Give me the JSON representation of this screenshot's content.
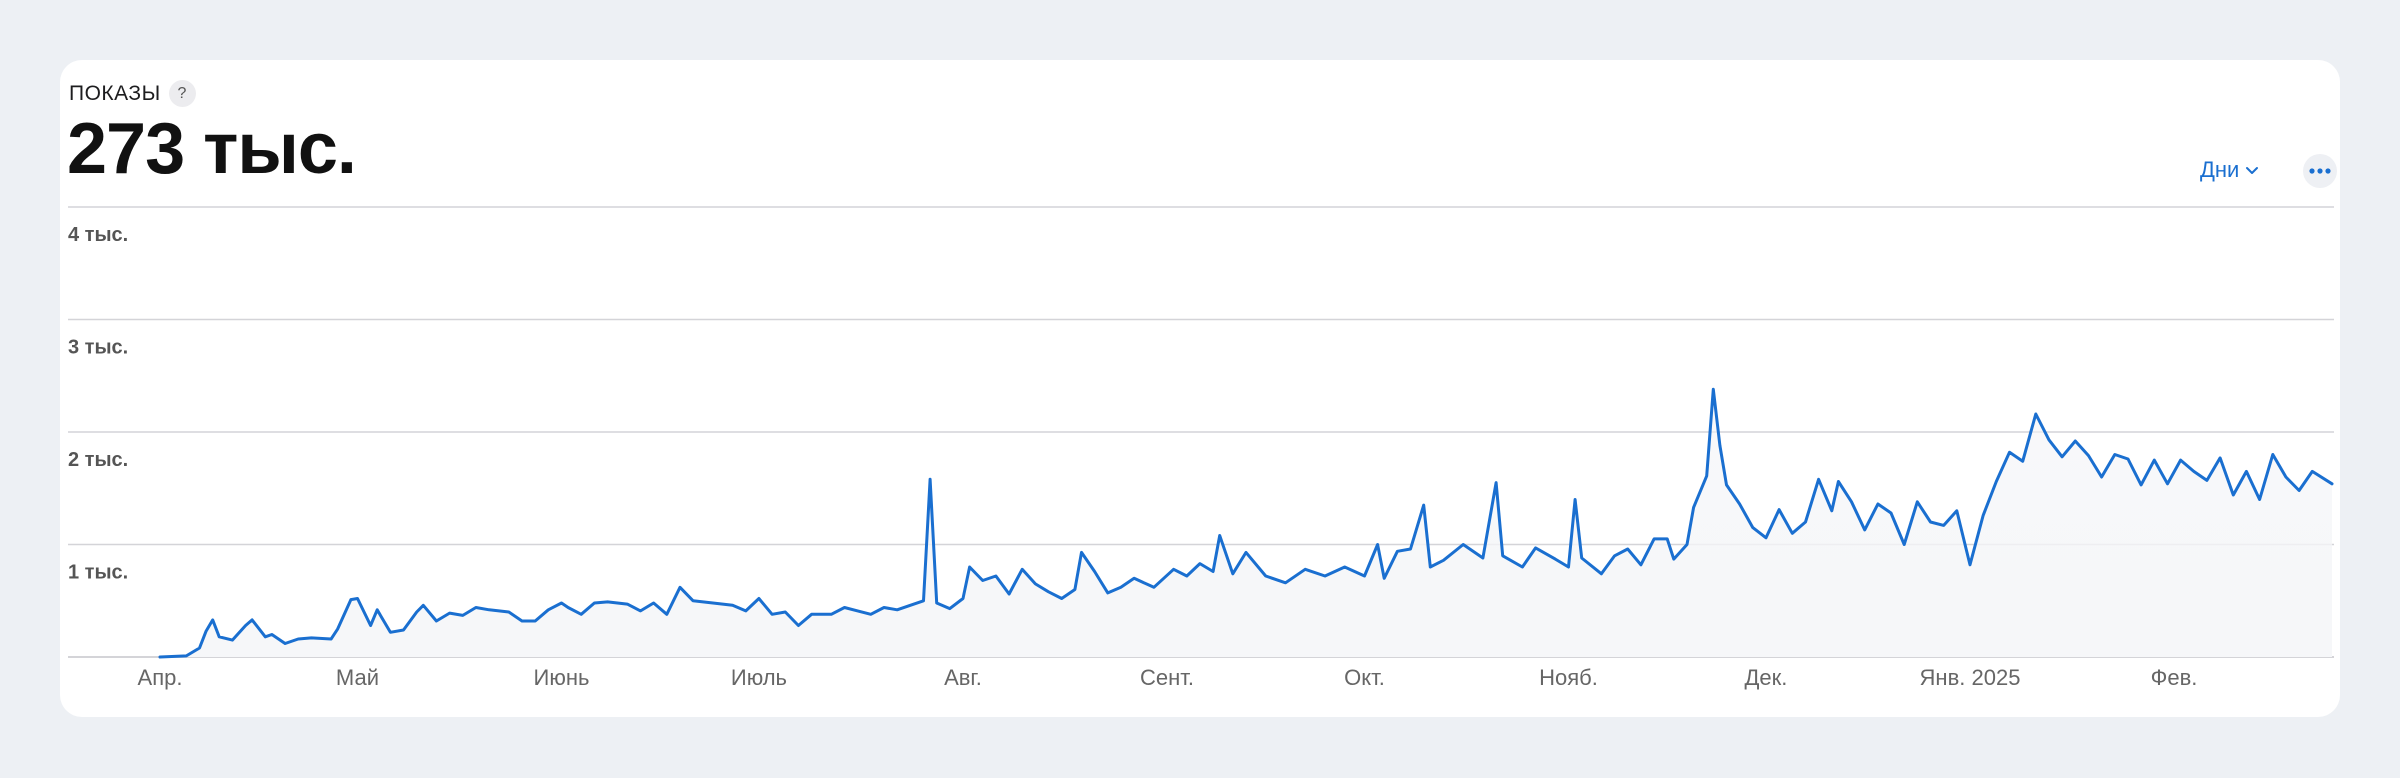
{
  "metric": {
    "label": "ПОКАЗЫ",
    "help": "?",
    "total": "273 тыс."
  },
  "controls": {
    "period_label": "Дни",
    "more_icon": "ellipsis-icon"
  },
  "colors": {
    "accent": "#1a6fd0",
    "line": "#1a6fd0",
    "grid": "#d4d4d8"
  },
  "chart_data": {
    "type": "area",
    "title": "",
    "xlabel": "",
    "ylabel": "",
    "ylim": [
      0,
      4000
    ],
    "yticks": [
      {
        "value": 1000,
        "label": "1 тыс."
      },
      {
        "value": 2000,
        "label": "2 тыс."
      },
      {
        "value": 3000,
        "label": "3 тыс."
      },
      {
        "value": 4000,
        "label": "4 тыс."
      }
    ],
    "xlim": [
      "2024-04-01",
      "2025-02-25"
    ],
    "xticks": [
      {
        "date": "2024-04-01",
        "label": "Апр."
      },
      {
        "date": "2024-05-01",
        "label": "Май"
      },
      {
        "date": "2024-06-01",
        "label": "Июнь"
      },
      {
        "date": "2024-07-01",
        "label": "Июль"
      },
      {
        "date": "2024-08-01",
        "label": "Авг."
      },
      {
        "date": "2024-09-01",
        "label": "Сент."
      },
      {
        "date": "2024-10-01",
        "label": "Окт."
      },
      {
        "date": "2024-11-01",
        "label": "Нояб."
      },
      {
        "date": "2024-12-01",
        "label": "Дек."
      },
      {
        "date": "2025-01-01",
        "label": "Янв. 2025"
      },
      {
        "date": "2025-02-01",
        "label": "Фев."
      }
    ],
    "grid": true,
    "series": [
      {
        "values": [
          [
            "2024-04-01",
            0
          ],
          [
            "2024-04-05",
            10
          ],
          [
            "2024-04-07",
            80
          ],
          [
            "2024-04-08",
            230
          ],
          [
            "2024-04-09",
            330
          ],
          [
            "2024-04-10",
            180
          ],
          [
            "2024-04-12",
            150
          ],
          [
            "2024-04-14",
            280
          ],
          [
            "2024-04-15",
            330
          ],
          [
            "2024-04-17",
            180
          ],
          [
            "2024-04-18",
            200
          ],
          [
            "2024-04-20",
            120
          ],
          [
            "2024-04-22",
            160
          ],
          [
            "2024-04-24",
            170
          ],
          [
            "2024-04-27",
            160
          ],
          [
            "2024-04-28",
            250
          ],
          [
            "2024-04-30",
            510
          ],
          [
            "2024-05-01",
            520
          ],
          [
            "2024-05-03",
            280
          ],
          [
            "2024-05-04",
            420
          ],
          [
            "2024-05-06",
            220
          ],
          [
            "2024-05-08",
            240
          ],
          [
            "2024-05-10",
            400
          ],
          [
            "2024-05-11",
            460
          ],
          [
            "2024-05-13",
            320
          ],
          [
            "2024-05-15",
            390
          ],
          [
            "2024-05-17",
            370
          ],
          [
            "2024-05-19",
            440
          ],
          [
            "2024-05-21",
            420
          ],
          [
            "2024-05-24",
            400
          ],
          [
            "2024-05-26",
            320
          ],
          [
            "2024-05-28",
            320
          ],
          [
            "2024-05-30",
            420
          ],
          [
            "2024-06-01",
            480
          ],
          [
            "2024-06-02",
            440
          ],
          [
            "2024-06-04",
            380
          ],
          [
            "2024-06-06",
            480
          ],
          [
            "2024-06-08",
            490
          ],
          [
            "2024-06-11",
            470
          ],
          [
            "2024-06-13",
            410
          ],
          [
            "2024-06-15",
            480
          ],
          [
            "2024-06-17",
            380
          ],
          [
            "2024-06-19",
            620
          ],
          [
            "2024-06-21",
            500
          ],
          [
            "2024-06-24",
            480
          ],
          [
            "2024-06-27",
            460
          ],
          [
            "2024-06-29",
            410
          ],
          [
            "2024-07-01",
            520
          ],
          [
            "2024-07-03",
            380
          ],
          [
            "2024-07-05",
            400
          ],
          [
            "2024-07-07",
            280
          ],
          [
            "2024-07-09",
            380
          ],
          [
            "2024-07-12",
            380
          ],
          [
            "2024-07-14",
            440
          ],
          [
            "2024-07-16",
            410
          ],
          [
            "2024-07-18",
            380
          ],
          [
            "2024-07-20",
            440
          ],
          [
            "2024-07-22",
            420
          ],
          [
            "2024-07-24",
            460
          ],
          [
            "2024-07-26",
            500
          ],
          [
            "2024-07-27",
            1580
          ],
          [
            "2024-07-28",
            480
          ],
          [
            "2024-07-30",
            430
          ],
          [
            "2024-08-01",
            520
          ],
          [
            "2024-08-02",
            800
          ],
          [
            "2024-08-04",
            680
          ],
          [
            "2024-08-06",
            720
          ],
          [
            "2024-08-08",
            560
          ],
          [
            "2024-08-10",
            780
          ],
          [
            "2024-08-12",
            650
          ],
          [
            "2024-08-14",
            580
          ],
          [
            "2024-08-16",
            520
          ],
          [
            "2024-08-18",
            600
          ],
          [
            "2024-08-19",
            930
          ],
          [
            "2024-08-21",
            760
          ],
          [
            "2024-08-23",
            570
          ],
          [
            "2024-08-25",
            620
          ],
          [
            "2024-08-27",
            700
          ],
          [
            "2024-08-30",
            620
          ],
          [
            "2024-09-02",
            780
          ],
          [
            "2024-09-04",
            720
          ],
          [
            "2024-09-06",
            830
          ],
          [
            "2024-09-08",
            760
          ],
          [
            "2024-09-09",
            1080
          ],
          [
            "2024-09-11",
            740
          ],
          [
            "2024-09-13",
            930
          ],
          [
            "2024-09-16",
            720
          ],
          [
            "2024-09-19",
            660
          ],
          [
            "2024-09-22",
            780
          ],
          [
            "2024-09-25",
            720
          ],
          [
            "2024-09-28",
            800
          ],
          [
            "2024-10-01",
            720
          ],
          [
            "2024-10-03",
            1000
          ],
          [
            "2024-10-04",
            700
          ],
          [
            "2024-10-06",
            940
          ],
          [
            "2024-10-08",
            960
          ],
          [
            "2024-10-10",
            1350
          ],
          [
            "2024-10-11",
            800
          ],
          [
            "2024-10-13",
            860
          ],
          [
            "2024-10-16",
            1000
          ],
          [
            "2024-10-19",
            880
          ],
          [
            "2024-10-21",
            1550
          ],
          [
            "2024-10-22",
            900
          ],
          [
            "2024-10-25",
            800
          ],
          [
            "2024-10-27",
            970
          ],
          [
            "2024-10-30",
            870
          ],
          [
            "2024-11-01",
            800
          ],
          [
            "2024-11-02",
            1400
          ],
          [
            "2024-11-03",
            880
          ],
          [
            "2024-11-06",
            740
          ],
          [
            "2024-11-08",
            900
          ],
          [
            "2024-11-10",
            960
          ],
          [
            "2024-11-12",
            820
          ],
          [
            "2024-11-14",
            1050
          ],
          [
            "2024-11-16",
            1050
          ],
          [
            "2024-11-17",
            870
          ],
          [
            "2024-11-19",
            1000
          ],
          [
            "2024-11-20",
            1330
          ],
          [
            "2024-11-22",
            1610
          ],
          [
            "2024-11-23",
            2380
          ],
          [
            "2024-11-24",
            1880
          ],
          [
            "2024-11-25",
            1530
          ],
          [
            "2024-11-27",
            1360
          ],
          [
            "2024-11-29",
            1150
          ],
          [
            "2024-12-01",
            1060
          ],
          [
            "2024-12-03",
            1310
          ],
          [
            "2024-12-05",
            1100
          ],
          [
            "2024-12-07",
            1200
          ],
          [
            "2024-12-09",
            1580
          ],
          [
            "2024-12-11",
            1300
          ],
          [
            "2024-12-12",
            1560
          ],
          [
            "2024-12-14",
            1380
          ],
          [
            "2024-12-16",
            1130
          ],
          [
            "2024-12-18",
            1360
          ],
          [
            "2024-12-20",
            1280
          ],
          [
            "2024-12-22",
            1000
          ],
          [
            "2024-12-24",
            1380
          ],
          [
            "2024-12-26",
            1200
          ],
          [
            "2024-12-28",
            1170
          ],
          [
            "2024-12-30",
            1300
          ],
          [
            "2025-01-01",
            820
          ],
          [
            "2025-01-03",
            1260
          ],
          [
            "2025-01-05",
            1560
          ],
          [
            "2025-01-07",
            1820
          ],
          [
            "2025-01-09",
            1740
          ],
          [
            "2025-01-11",
            2160
          ],
          [
            "2025-01-13",
            1930
          ],
          [
            "2025-01-15",
            1780
          ],
          [
            "2025-01-17",
            1920
          ],
          [
            "2025-01-19",
            1790
          ],
          [
            "2025-01-21",
            1600
          ],
          [
            "2025-01-23",
            1800
          ],
          [
            "2025-01-25",
            1760
          ],
          [
            "2025-01-27",
            1530
          ],
          [
            "2025-01-29",
            1750
          ],
          [
            "2025-01-31",
            1540
          ],
          [
            "2025-02-02",
            1750
          ],
          [
            "2025-02-04",
            1650
          ],
          [
            "2025-02-06",
            1570
          ],
          [
            "2025-02-08",
            1770
          ],
          [
            "2025-02-10",
            1440
          ],
          [
            "2025-02-12",
            1650
          ],
          [
            "2025-02-14",
            1400
          ],
          [
            "2025-02-16",
            1800
          ],
          [
            "2025-02-18",
            1600
          ],
          [
            "2025-02-20",
            1480
          ],
          [
            "2025-02-22",
            1650
          ],
          [
            "2025-02-25",
            1540
          ]
        ]
      }
    ]
  }
}
